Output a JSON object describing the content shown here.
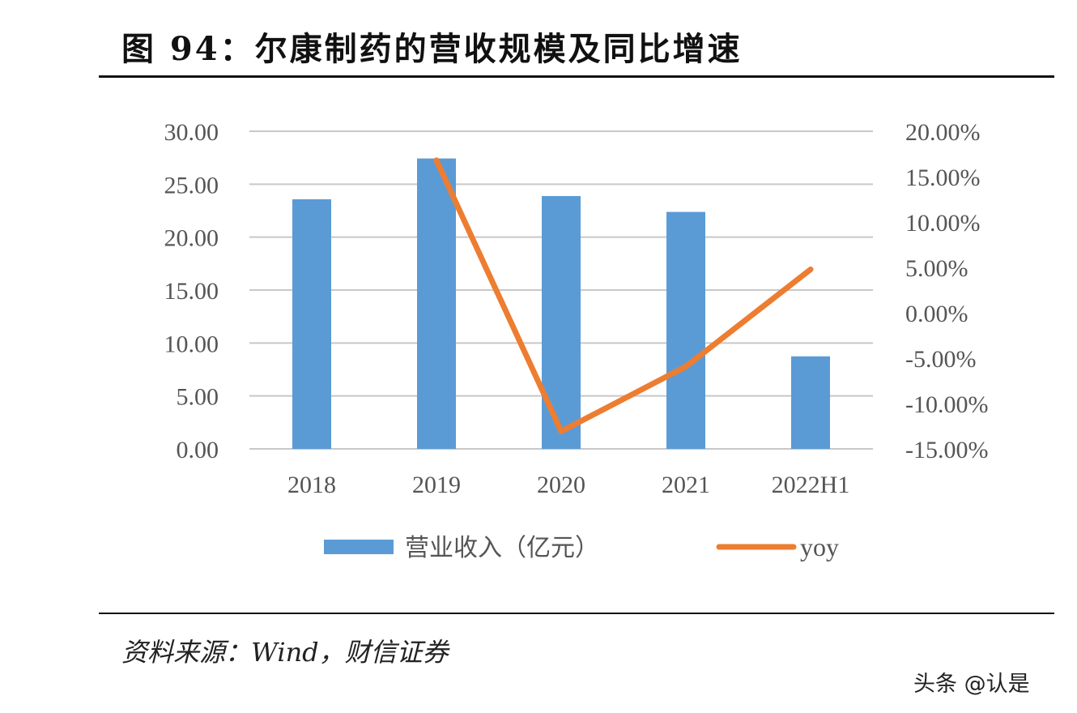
{
  "title": "图 94：尔康制药的营收规模及同比增速",
  "source": "资料来源：Wind，财信证券",
  "watermark": "头条 @认是",
  "chart_data": {
    "type": "bar+line",
    "categories": [
      "2018",
      "2019",
      "2020",
      "2021",
      "2022H1"
    ],
    "series": [
      {
        "name": "营业收入（亿元）",
        "type": "bar",
        "axis": "left",
        "color": "#5B9BD5",
        "values": [
          23.58,
          27.43,
          23.88,
          22.38,
          8.74
        ]
      },
      {
        "name": "yoy",
        "type": "line",
        "axis": "right",
        "color": "#ED7D31",
        "values": [
          null,
          16.8,
          -13.07,
          -5.93,
          4.78
        ]
      }
    ],
    "left_axis": {
      "ylim": [
        0,
        30
      ],
      "ticks": [
        "0.00",
        "5.00",
        "10.00",
        "15.00",
        "20.00",
        "25.00",
        "30.00"
      ]
    },
    "right_axis": {
      "ylim": [
        -15,
        20
      ],
      "unit": "%",
      "ticks": [
        "-15.00%",
        "-10.00%",
        "-5.00%",
        "0.00%",
        "5.00%",
        "10.00%",
        "15.00%",
        "20.00%"
      ]
    },
    "grid": true,
    "legend": "bottom"
  }
}
